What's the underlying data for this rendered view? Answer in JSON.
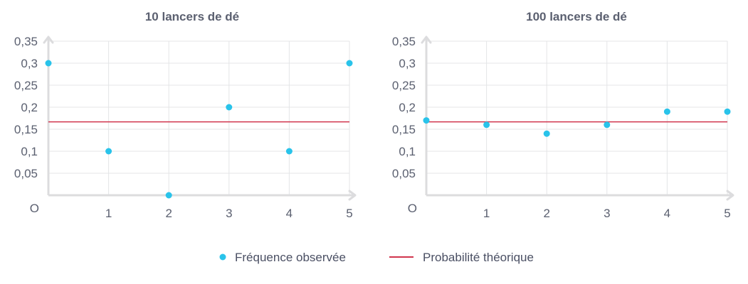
{
  "colors": {
    "points": "#29c3ea",
    "reference_line": "#d0354d",
    "grid": "#e4e5e7",
    "axis": "#dcdcde",
    "text": "#5b6070"
  },
  "legend": {
    "observed_label": "Fréquence observée",
    "theoretical_label": "Probabilité théorique"
  },
  "chart_data": [
    {
      "type": "scatter",
      "title": "10 lancers de dé",
      "origin_label": "O",
      "x_ticks": [
        "1",
        "2",
        "3",
        "4",
        "5"
      ],
      "y_ticks": [
        "0,05",
        "0,1",
        "0,15",
        "0,2",
        "0,25",
        "0,3",
        "0,35"
      ],
      "xlim": [
        0,
        5
      ],
      "ylim": [
        0,
        0.35
      ],
      "grid": true,
      "legend_position": "bottom",
      "series": [
        {
          "name": "Fréquence observée",
          "x": [
            0,
            1,
            2,
            3,
            4,
            5
          ],
          "y": [
            0.3,
            0.1,
            0.0,
            0.2,
            0.1,
            0.3
          ]
        }
      ],
      "reference_line": {
        "name": "Probabilité théorique",
        "y": 0.1667
      }
    },
    {
      "type": "scatter",
      "title": "100 lancers de dé",
      "origin_label": "O",
      "x_ticks": [
        "1",
        "2",
        "3",
        "4",
        "5"
      ],
      "y_ticks": [
        "0,05",
        "0,1",
        "0,15",
        "0,2",
        "0,25",
        "0,3",
        "0,35"
      ],
      "xlim": [
        0,
        5
      ],
      "ylim": [
        0,
        0.35
      ],
      "grid": true,
      "legend_position": "bottom",
      "series": [
        {
          "name": "Fréquence observée",
          "x": [
            0,
            1,
            2,
            3,
            4,
            5
          ],
          "y": [
            0.17,
            0.16,
            0.14,
            0.16,
            0.19,
            0.19
          ]
        }
      ],
      "reference_line": {
        "name": "Probabilité théorique",
        "y": 0.1667
      }
    }
  ]
}
